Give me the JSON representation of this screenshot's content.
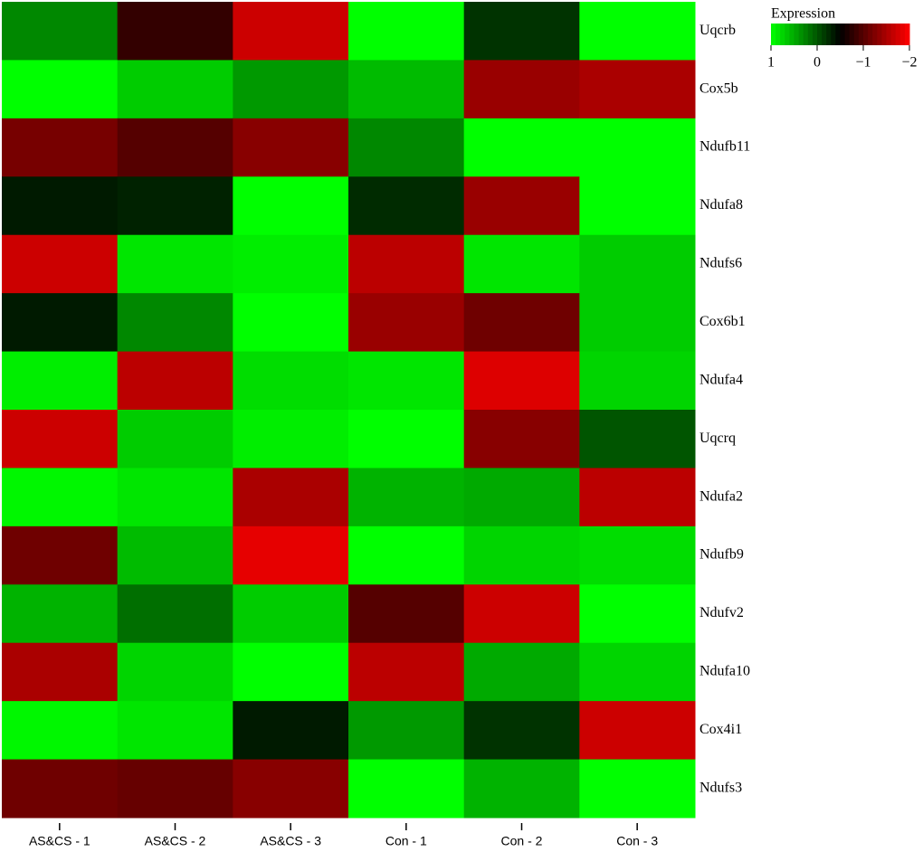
{
  "chart_data": {
    "type": "heatmap",
    "categories": [
      "AS&CS - 1",
      "AS&CS - 2",
      "AS&CS - 3",
      "Con - 1",
      "Con - 2",
      "Con - 3"
    ],
    "rows": [
      "Uqcrb",
      "Cox5b",
      "Ndufb11",
      "Ndufa8",
      "Ndufs6",
      "Cox6b1",
      "Ndufa4",
      "Uqcrq",
      "Ndufa2",
      "Ndufb9",
      "Ndufv2",
      "Ndufa10",
      "Cox4i1",
      "Ndufs3"
    ],
    "values": [
      [
        0.3,
        -0.8,
        -1.7,
        1,
        -0.2,
        1
      ],
      [
        1,
        0.7,
        0.4,
        0.6,
        -1.4,
        -1.5
      ],
      [
        -1.2,
        -1.0,
        -1.3,
        0.3,
        1,
        1
      ],
      [
        -0.35,
        -0.3,
        1,
        -0.25,
        -1.4,
        1
      ],
      [
        -1.7,
        0.85,
        0.9,
        -1.6,
        0.85,
        0.7
      ],
      [
        -0.35,
        0.3,
        1,
        -1.4,
        -1.15,
        0.7
      ],
      [
        0.9,
        -1.6,
        0.8,
        0.85,
        -1.8,
        0.75
      ],
      [
        -1.7,
        0.7,
        0.9,
        1,
        -1.3,
        0.0
      ],
      [
        0.95,
        0.85,
        -1.5,
        0.55,
        0.5,
        -1.6
      ],
      [
        -1.15,
        0.6,
        -1.85,
        1,
        0.75,
        0.8
      ],
      [
        0.55,
        0.15,
        0.7,
        -1.0,
        -1.7,
        1
      ],
      [
        -1.5,
        0.75,
        1,
        -1.6,
        0.5,
        0.75
      ],
      [
        0.95,
        0.85,
        -0.35,
        0.4,
        -0.2,
        -1.7
      ],
      [
        -1.15,
        -1.1,
        -1.3,
        1,
        0.55,
        1
      ]
    ],
    "colorscale": {
      "title": "Expression",
      "range": [
        1,
        -2
      ],
      "colors": [
        "#00ff00",
        "#000000",
        "#ff0000"
      ],
      "ticks": [
        1,
        0,
        {
          "value": -1,
          "label": "−1"
        },
        {
          "value": -2,
          "label": "−2"
        }
      ]
    }
  }
}
